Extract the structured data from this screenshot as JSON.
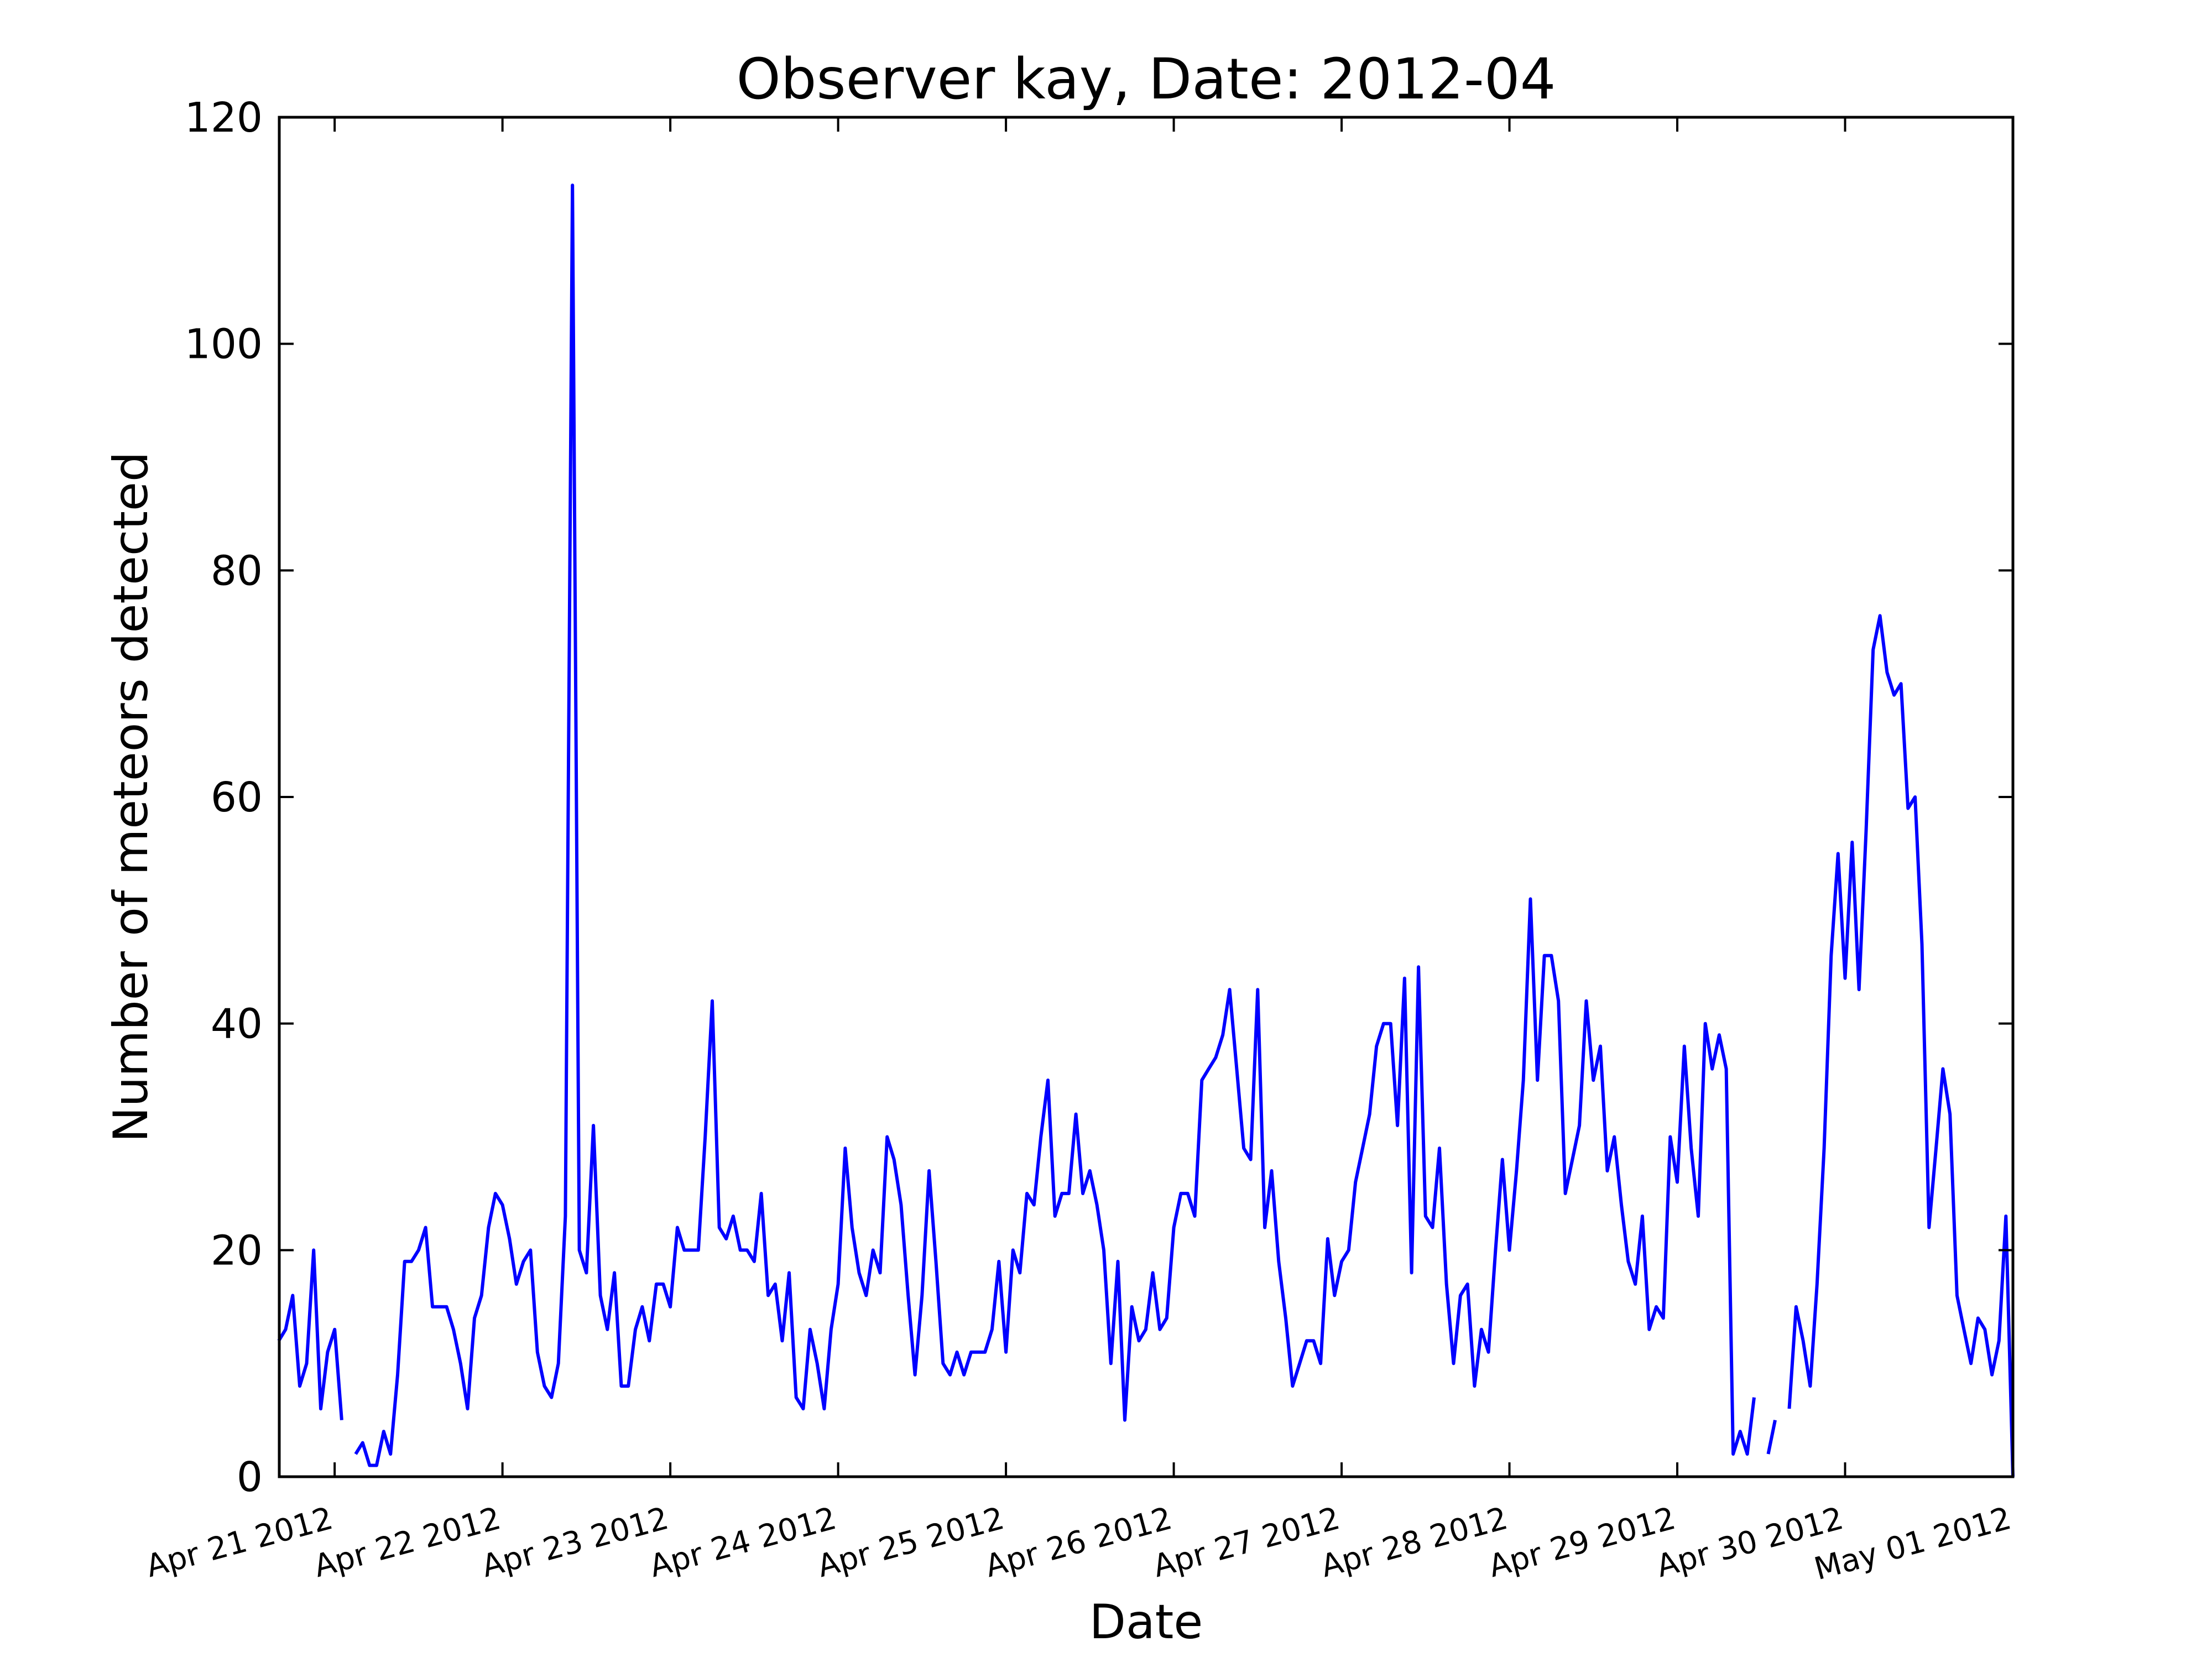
{
  "chart_data": {
    "type": "line",
    "title": "Observer kay, Date: 2012-04",
    "xlabel": "Date",
    "ylabel": "Number of meteors detected",
    "ylim": [
      0,
      120
    ],
    "yticks": [
      "0",
      "20",
      "40",
      "60",
      "80",
      "100",
      "120"
    ],
    "xlim_days": [
      -0.33,
      10.0
    ],
    "xticks": [
      {
        "day": 0,
        "label": "Apr 21 2012"
      },
      {
        "day": 1,
        "label": "Apr 22 2012"
      },
      {
        "day": 2,
        "label": "Apr 23 2012"
      },
      {
        "day": 3,
        "label": "Apr 24 2012"
      },
      {
        "day": 4,
        "label": "Apr 25 2012"
      },
      {
        "day": 5,
        "label": "Apr 26 2012"
      },
      {
        "day": 6,
        "label": "Apr 27 2012"
      },
      {
        "day": 7,
        "label": "Apr 28 2012"
      },
      {
        "day": 8,
        "label": "Apr 29 2012"
      },
      {
        "day": 9,
        "label": "Apr 30 2012"
      },
      {
        "day": 10,
        "label": "May 01 2012"
      }
    ],
    "grid": false,
    "line_color": "#0000ff",
    "series": [
      {
        "name": "",
        "segments": [
          [
            [
              -0.333,
              12
            ],
            [
              -0.292,
              13
            ],
            [
              -0.25,
              16
            ],
            [
              -0.208,
              8
            ],
            [
              -0.167,
              10
            ],
            [
              -0.125,
              20
            ],
            [
              -0.083,
              6
            ],
            [
              -0.042,
              11
            ],
            [
              0.0,
              13
            ],
            [
              0.042,
              5
            ]
          ],
          [
            [
              0.125,
              2
            ],
            [
              0.167,
              3
            ],
            [
              0.208,
              1
            ],
            [
              0.25,
              1
            ],
            [
              0.292,
              4
            ],
            [
              0.333,
              2
            ],
            [
              0.375,
              9
            ],
            [
              0.417,
              19
            ],
            [
              0.458,
              19
            ],
            [
              0.5,
              20
            ],
            [
              0.542,
              22
            ],
            [
              0.583,
              15
            ],
            [
              0.625,
              15
            ],
            [
              0.667,
              15
            ],
            [
              0.708,
              13
            ],
            [
              0.75,
              10
            ],
            [
              0.792,
              6
            ],
            [
              0.833,
              14
            ],
            [
              0.875,
              16
            ],
            [
              0.917,
              22
            ],
            [
              0.958,
              25
            ],
            [
              1.0,
              24
            ],
            [
              1.042,
              21
            ],
            [
              1.083,
              17
            ],
            [
              1.125,
              19
            ],
            [
              1.167,
              20
            ],
            [
              1.208,
              11
            ],
            [
              1.25,
              8
            ],
            [
              1.292,
              7
            ],
            [
              1.333,
              10
            ],
            [
              1.375,
              23
            ],
            [
              1.417,
              114
            ],
            [
              1.458,
              20
            ],
            [
              1.5,
              18
            ],
            [
              1.542,
              31
            ],
            [
              1.583,
              16
            ],
            [
              1.625,
              13
            ],
            [
              1.667,
              18
            ],
            [
              1.708,
              8
            ],
            [
              1.75,
              8
            ],
            [
              1.792,
              13
            ],
            [
              1.833,
              15
            ],
            [
              1.875,
              12
            ],
            [
              1.917,
              17
            ],
            [
              1.958,
              17
            ],
            [
              2.0,
              15
            ],
            [
              2.042,
              22
            ],
            [
              2.083,
              20
            ],
            [
              2.125,
              20
            ],
            [
              2.167,
              20
            ],
            [
              2.208,
              30
            ],
            [
              2.25,
              42
            ],
            [
              2.292,
              22
            ],
            [
              2.333,
              21
            ],
            [
              2.375,
              23
            ],
            [
              2.417,
              20
            ],
            [
              2.458,
              20
            ],
            [
              2.5,
              19
            ],
            [
              2.542,
              25
            ],
            [
              2.583,
              16
            ],
            [
              2.625,
              17
            ],
            [
              2.667,
              12
            ],
            [
              2.708,
              18
            ],
            [
              2.75,
              7
            ],
            [
              2.792,
              6
            ],
            [
              2.833,
              13
            ],
            [
              2.875,
              10
            ],
            [
              2.917,
              6
            ],
            [
              2.958,
              13
            ],
            [
              3.0,
              17
            ],
            [
              3.042,
              29
            ],
            [
              3.083,
              22
            ],
            [
              3.125,
              18
            ],
            [
              3.167,
              16
            ],
            [
              3.208,
              20
            ],
            [
              3.25,
              18
            ],
            [
              3.292,
              30
            ],
            [
              3.333,
              28
            ],
            [
              3.375,
              24
            ],
            [
              3.417,
              16
            ],
            [
              3.458,
              9
            ],
            [
              3.5,
              16
            ],
            [
              3.542,
              27
            ],
            [
              3.583,
              19
            ],
            [
              3.625,
              10
            ],
            [
              3.667,
              9
            ],
            [
              3.708,
              11
            ],
            [
              3.75,
              9
            ],
            [
              3.792,
              11
            ],
            [
              3.833,
              11
            ],
            [
              3.875,
              11
            ],
            [
              3.917,
              13
            ],
            [
              3.958,
              19
            ],
            [
              4.0,
              11
            ],
            [
              4.042,
              20
            ],
            [
              4.083,
              18
            ],
            [
              4.125,
              25
            ],
            [
              4.167,
              24
            ],
            [
              4.208,
              30
            ],
            [
              4.25,
              35
            ],
            [
              4.292,
              23
            ],
            [
              4.333,
              25
            ],
            [
              4.375,
              25
            ],
            [
              4.417,
              32
            ],
            [
              4.458,
              25
            ],
            [
              4.5,
              27
            ],
            [
              4.542,
              24
            ],
            [
              4.583,
              20
            ],
            [
              4.625,
              10
            ],
            [
              4.667,
              19
            ],
            [
              4.708,
              5
            ],
            [
              4.75,
              15
            ],
            [
              4.792,
              12
            ],
            [
              4.833,
              13
            ],
            [
              4.875,
              18
            ],
            [
              4.917,
              13
            ],
            [
              4.958,
              14
            ],
            [
              5.0,
              22
            ],
            [
              5.042,
              25
            ],
            [
              5.083,
              25
            ],
            [
              5.125,
              23
            ],
            [
              5.167,
              35
            ],
            [
              5.208,
              36
            ],
            [
              5.25,
              37
            ],
            [
              5.292,
              39
            ],
            [
              5.333,
              43
            ],
            [
              5.375,
              36
            ],
            [
              5.417,
              29
            ],
            [
              5.458,
              28
            ],
            [
              5.5,
              43
            ],
            [
              5.542,
              22
            ],
            [
              5.583,
              27
            ],
            [
              5.625,
              19
            ],
            [
              5.667,
              14
            ],
            [
              5.708,
              8
            ],
            [
              5.75,
              10
            ],
            [
              5.792,
              12
            ],
            [
              5.833,
              12
            ],
            [
              5.875,
              10
            ],
            [
              5.917,
              21
            ],
            [
              5.958,
              16
            ],
            [
              6.0,
              19
            ],
            [
              6.042,
              20
            ],
            [
              6.083,
              26
            ],
            [
              6.125,
              29
            ],
            [
              6.167,
              32
            ],
            [
              6.208,
              38
            ],
            [
              6.25,
              40
            ],
            [
              6.292,
              40
            ],
            [
              6.333,
              31
            ],
            [
              6.375,
              44
            ],
            [
              6.417,
              18
            ],
            [
              6.458,
              45
            ],
            [
              6.5,
              23
            ],
            [
              6.542,
              22
            ],
            [
              6.583,
              29
            ],
            [
              6.625,
              17
            ],
            [
              6.667,
              10
            ],
            [
              6.708,
              16
            ],
            [
              6.75,
              17
            ],
            [
              6.792,
              8
            ],
            [
              6.833,
              13
            ],
            [
              6.875,
              11
            ],
            [
              6.917,
              20
            ],
            [
              6.958,
              28
            ],
            [
              7.0,
              20
            ],
            [
              7.042,
              27
            ],
            [
              7.083,
              35
            ],
            [
              7.125,
              51
            ],
            [
              7.167,
              35
            ],
            [
              7.208,
              46
            ],
            [
              7.25,
              46
            ],
            [
              7.292,
              42
            ],
            [
              7.333,
              25
            ],
            [
              7.375,
              28
            ],
            [
              7.417,
              31
            ],
            [
              7.458,
              42
            ],
            [
              7.5,
              35
            ],
            [
              7.542,
              38
            ],
            [
              7.583,
              27
            ],
            [
              7.625,
              30
            ],
            [
              7.667,
              24
            ],
            [
              7.708,
              19
            ],
            [
              7.75,
              17
            ],
            [
              7.792,
              23
            ],
            [
              7.833,
              13
            ],
            [
              7.875,
              15
            ],
            [
              7.917,
              14
            ],
            [
              7.958,
              30
            ],
            [
              8.0,
              26
            ],
            [
              8.042,
              38
            ],
            [
              8.083,
              29
            ],
            [
              8.125,
              23
            ],
            [
              8.167,
              40
            ],
            [
              8.208,
              36
            ],
            [
              8.25,
              39
            ],
            [
              8.292,
              36
            ],
            [
              8.333,
              2
            ],
            [
              8.375,
              4
            ],
            [
              8.417,
              2
            ],
            [
              8.458,
              7
            ]
          ],
          [
            [
              8.542,
              2
            ],
            [
              8.583,
              5
            ]
          ],
          [
            [
              8.667,
              6
            ],
            [
              8.708,
              15
            ],
            [
              8.75,
              12
            ],
            [
              8.792,
              8
            ],
            [
              8.833,
              17
            ],
            [
              8.875,
              29
            ],
            [
              8.917,
              46
            ],
            [
              8.958,
              55
            ],
            [
              9.0,
              44
            ],
            [
              9.042,
              56
            ],
            [
              9.083,
              43
            ],
            [
              9.125,
              57
            ],
            [
              9.167,
              73
            ],
            [
              9.208,
              76
            ],
            [
              9.25,
              71
            ],
            [
              9.292,
              69
            ],
            [
              9.333,
              70
            ],
            [
              9.375,
              59
            ],
            [
              9.417,
              60
            ],
            [
              9.458,
              47
            ],
            [
              9.5,
              22
            ],
            [
              9.542,
              29
            ],
            [
              9.583,
              36
            ],
            [
              9.625,
              32
            ],
            [
              9.667,
              16
            ],
            [
              9.708,
              13
            ],
            [
              9.75,
              10
            ],
            [
              9.792,
              14
            ],
            [
              9.833,
              13
            ],
            [
              9.875,
              9
            ],
            [
              9.917,
              12
            ],
            [
              9.958,
              23
            ],
            [
              10.0,
              0
            ]
          ]
        ]
      }
    ]
  }
}
